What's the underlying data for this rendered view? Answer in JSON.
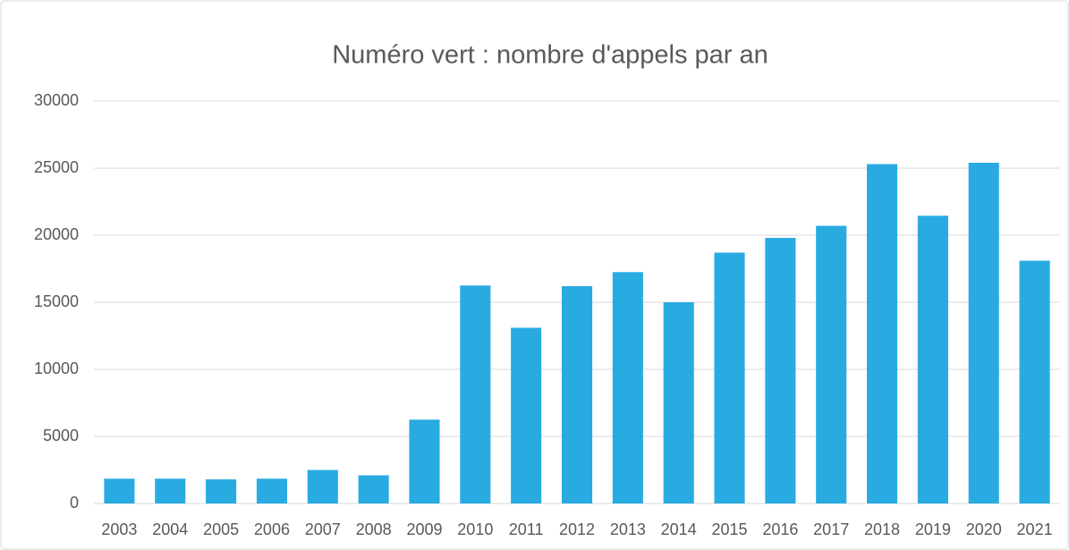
{
  "chart_data": {
    "type": "bar",
    "title": "Numéro vert : nombre d'appels par an",
    "categories": [
      "2003",
      "2004",
      "2005",
      "2006",
      "2007",
      "2008",
      "2009",
      "2010",
      "2011",
      "2012",
      "2013",
      "2014",
      "2015",
      "2016",
      "2017",
      "2018",
      "2019",
      "2020",
      "2021"
    ],
    "values": [
      1850,
      1850,
      1800,
      1850,
      2500,
      2100,
      6250,
      16250,
      13100,
      16200,
      17250,
      15000,
      18700,
      19800,
      20700,
      25300,
      21450,
      25400,
      18100
    ],
    "color": "#29abe2",
    "ylim": [
      0,
      30000
    ],
    "yticks": [
      0,
      5000,
      10000,
      15000,
      20000,
      25000,
      30000
    ],
    "grid": true
  }
}
